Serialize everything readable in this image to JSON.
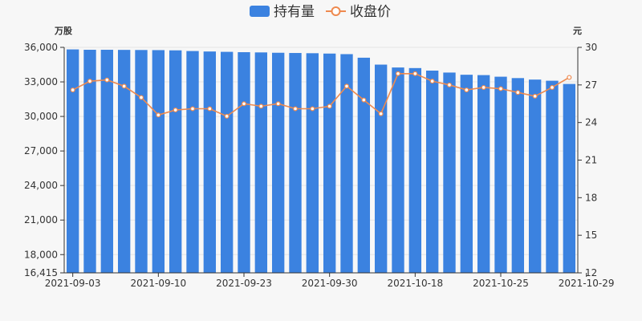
{
  "chart_data": {
    "type": "bar+line",
    "legend": {
      "position": "top-center",
      "items": [
        {
          "label": "持有量",
          "type": "bar",
          "color": "#3b82e0"
        },
        {
          "label": "收盘价",
          "type": "line",
          "color": "#ee8a4f"
        }
      ]
    },
    "y_left": {
      "unit_label": "万股",
      "min": 16415,
      "max": 36000,
      "ticks": [
        16415,
        18000,
        21000,
        24000,
        27000,
        30000,
        33000,
        36000
      ],
      "tick_labels": [
        "16,415",
        "18,000",
        "21,000",
        "24,000",
        "27,000",
        "30,000",
        "33,000",
        "36,000"
      ]
    },
    "y_right": {
      "unit_label": "元",
      "min": 12,
      "max": 30,
      "ticks": [
        12,
        15,
        18,
        21,
        24,
        27,
        30
      ],
      "tick_labels": [
        "12",
        "15",
        "18",
        "21",
        "24",
        "27",
        "30"
      ]
    },
    "x_tick_labels": [
      {
        "index": 0,
        "label": "2021-09-03"
      },
      {
        "index": 5,
        "label": "2021-09-10"
      },
      {
        "index": 10,
        "label": "2021-09-23"
      },
      {
        "index": 15,
        "label": "2021-09-30"
      },
      {
        "index": 20,
        "label": "2021-10-18"
      },
      {
        "index": 25,
        "label": "2021-10-25"
      },
      {
        "index": 30,
        "label": "2021-10-29"
      }
    ],
    "series": [
      {
        "name": "持有量",
        "type": "bar",
        "axis": "left",
        "color": "#3b82e0",
        "values": [
          35820,
          35790,
          35790,
          35780,
          35770,
          35760,
          35740,
          35680,
          35640,
          35610,
          35580,
          35560,
          35530,
          35510,
          35490,
          35460,
          35410,
          35100,
          34500,
          34250,
          34200,
          33980,
          33810,
          33620,
          33590,
          33450,
          33330,
          33200,
          33100,
          32820
        ]
      },
      {
        "name": "收盘价",
        "type": "line",
        "axis": "right",
        "color": "#ee8a4f",
        "values": [
          26.6,
          27.3,
          27.4,
          26.9,
          26.0,
          24.6,
          25.0,
          25.1,
          25.1,
          24.5,
          25.5,
          25.3,
          25.5,
          25.1,
          25.1,
          25.3,
          26.9,
          25.8,
          24.7,
          27.9,
          27.9,
          27.3,
          27.0,
          26.6,
          26.8,
          26.7,
          26.4,
          26.1,
          26.8,
          27.6
        ]
      }
    ]
  }
}
